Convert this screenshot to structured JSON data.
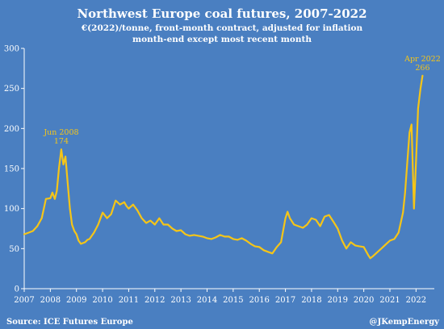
{
  "chart_data": {
    "type": "line",
    "title": "Northwest Europe coal futures, 2007-2022",
    "subtitle_lines": [
      "€(2022)/tonne, front-month contract, adjusted for inflation",
      "month-end except most recent month"
    ],
    "xlabel": "",
    "ylabel": "",
    "xlim": [
      2007,
      2022.7
    ],
    "ylim": [
      0,
      300
    ],
    "x_ticks": [
      "2007",
      "2008",
      "2009",
      "2010",
      "2011",
      "2012",
      "2013",
      "2014",
      "2015",
      "2016",
      "2017",
      "2018",
      "2019",
      "2020",
      "2021",
      "2022"
    ],
    "y_ticks": [
      "0",
      "50",
      "100",
      "150",
      "200",
      "250",
      "300"
    ],
    "grid": false,
    "line_color": "#f5c518",
    "series": [
      {
        "x": [
          2007.0,
          2007.17,
          2007.33,
          2007.5,
          2007.67,
          2007.83,
          2008.0,
          2008.08,
          2008.17,
          2008.25,
          2008.33,
          2008.42,
          2008.5,
          2008.58,
          2008.67,
          2008.75,
          2008.83,
          2008.92,
          2009.0,
          2009.08,
          2009.17,
          2009.25,
          2009.33,
          2009.42,
          2009.5,
          2009.67,
          2009.83,
          2010.0,
          2010.17,
          2010.33,
          2010.5,
          2010.67,
          2010.83,
          2010.92,
          2011.0,
          2011.17,
          2011.33,
          2011.5,
          2011.67,
          2011.83,
          2012.0,
          2012.17,
          2012.33,
          2012.5,
          2012.67,
          2012.83,
          2013.0,
          2013.17,
          2013.33,
          2013.5,
          2013.67,
          2013.83,
          2014.0,
          2014.17,
          2014.33,
          2014.5,
          2014.67,
          2014.83,
          2015.0,
          2015.17,
          2015.33,
          2015.5,
          2015.67,
          2015.83,
          2016.0,
          2016.17,
          2016.33,
          2016.5,
          2016.67,
          2016.83,
          2017.0,
          2017.08,
          2017.17,
          2017.33,
          2017.5,
          2017.67,
          2017.83,
          2018.0,
          2018.17,
          2018.33,
          2018.5,
          2018.67,
          2018.83,
          2019.0,
          2019.17,
          2019.33,
          2019.5,
          2019.67,
          2019.83,
          2020.0,
          2020.17,
          2020.25,
          2020.33,
          2020.5,
          2020.67,
          2020.83,
          2021.0,
          2021.17,
          2021.33,
          2021.5,
          2021.58,
          2021.67,
          2021.75,
          2021.83,
          2021.92,
          2022.0,
          2022.08,
          2022.17,
          2022.25
        ],
        "y": [
          68,
          70,
          72,
          78,
          88,
          112,
          113,
          120,
          112,
          122,
          150,
          174,
          155,
          165,
          130,
          100,
          80,
          72,
          68,
          60,
          56,
          57,
          58,
          61,
          62,
          70,
          80,
          95,
          88,
          93,
          110,
          105,
          108,
          103,
          100,
          105,
          98,
          88,
          82,
          85,
          80,
          88,
          80,
          80,
          75,
          72,
          73,
          68,
          66,
          67,
          66,
          65,
          63,
          62,
          64,
          67,
          65,
          65,
          62,
          61,
          63,
          60,
          56,
          53,
          52,
          48,
          46,
          44,
          52,
          58,
          88,
          96,
          88,
          80,
          78,
          76,
          80,
          88,
          86,
          78,
          90,
          92,
          84,
          75,
          60,
          50,
          58,
          54,
          53,
          52,
          42,
          38,
          40,
          45,
          50,
          55,
          60,
          62,
          70,
          95,
          120,
          160,
          195,
          205,
          100,
          160,
          225,
          250,
          266
        ]
      }
    ],
    "annotations": [
      {
        "label": "Jun 2008",
        "value_text": "174",
        "x": 2008.42,
        "y": 174
      },
      {
        "label": "Apr 2022",
        "value_text": "266",
        "x": 2022.25,
        "y": 266
      }
    ],
    "source": "Source: ICE Futures Europe",
    "credit": "@JKempEnergy"
  }
}
